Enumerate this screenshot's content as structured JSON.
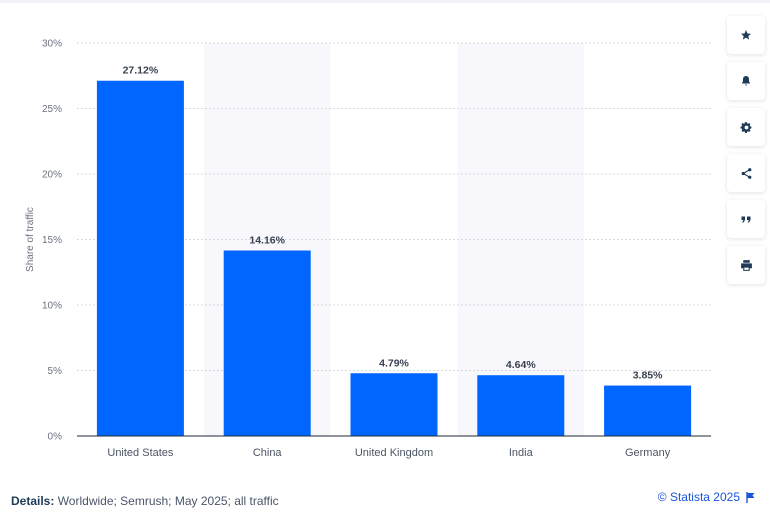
{
  "chart_data": {
    "type": "bar",
    "categories": [
      "United States",
      "China",
      "United Kingdom",
      "India",
      "Germany"
    ],
    "values": [
      27.12,
      14.16,
      4.79,
      4.64,
      3.85
    ],
    "value_labels": [
      "27.12%",
      "14.16%",
      "4.79%",
      "4.64%",
      "3.85%"
    ],
    "title": "",
    "xlabel": "",
    "ylabel": "Share of traffic",
    "ylim": [
      0,
      30
    ],
    "yticks": [
      0,
      5,
      10,
      15,
      20,
      25,
      30
    ],
    "ytick_labels": [
      "0%",
      "5%",
      "10%",
      "15%",
      "20%",
      "25%",
      "30%"
    ],
    "grid": true,
    "bar_color": "#0066ff",
    "band_color": "#f8f7fb"
  },
  "toolbar": {
    "items": [
      {
        "icon": "star-icon",
        "name": "favorite-button"
      },
      {
        "icon": "bell-icon",
        "name": "notification-button"
      },
      {
        "icon": "gear-icon",
        "name": "settings-button"
      },
      {
        "icon": "share-icon",
        "name": "share-button"
      },
      {
        "icon": "quote-icon",
        "name": "cite-button"
      },
      {
        "icon": "print-icon",
        "name": "print-button"
      }
    ]
  },
  "footer": {
    "details_label": "Details:",
    "details_text": " Worldwide; Semrush; May 2025; all traffic",
    "credit": "© Statista 2025",
    "flag_icon": "flag-icon"
  }
}
